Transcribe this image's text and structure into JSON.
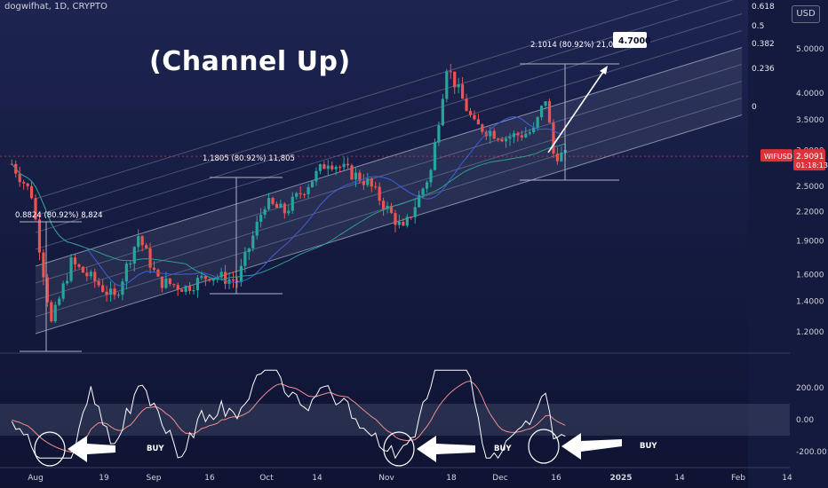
{
  "title": "dogwifhat, 1D, CRYPTO",
  "currency_button": "USD",
  "headline": "(Channel Up)",
  "price_label": {
    "symbol": "WIFUSD",
    "price": "2.9091",
    "countdown": "01:18:13"
  },
  "target_label": "4.7000",
  "fib_levels": [
    "0.618",
    "0.5",
    "0.382",
    "0.236",
    "0"
  ],
  "measure_labels": [
    {
      "text": "0.8824 (80.92%) 8,824"
    },
    {
      "text": "1.1805 (80.92%) 11,805"
    },
    {
      "text": "2.1014 (80.92%) 21,014"
    }
  ],
  "buy_labels": [
    "BUY",
    "BUY",
    "BUY"
  ],
  "colors": {
    "up": "#26a69a",
    "down": "#ef5350",
    "ma_blue": "#3f5fd8",
    "ma_green": "#2e9d8c",
    "osc": "#ffffff",
    "signal": "#ef8f8f",
    "price_tag": "#e0313a"
  },
  "chart_data": [
    {
      "type": "candlestick",
      "title": "dogwifhat, 1D, CRYPTO",
      "y_scale": "log",
      "y_ticks": [
        5.0,
        4.0,
        3.5,
        3.0,
        2.5,
        2.2,
        1.9,
        1.6,
        1.4,
        1.2
      ],
      "y_tick_labels": [
        "5.0000",
        "4.0000",
        "3.5000",
        "3.0000",
        "2.5000",
        "2.2000",
        "1.9000",
        "1.6000",
        "1.4000",
        "1.2000"
      ],
      "x_tick_labels": [
        "Aug",
        "19",
        "Sep",
        "16",
        "Oct",
        "14",
        "Nov",
        "18",
        "Dec",
        "16",
        "2025",
        "14",
        "Feb",
        "14"
      ],
      "series_keypoints": [
        {
          "date": "2024-07-26",
          "close": 2.8
        },
        {
          "date": "2024-07-31",
          "close": 2.4
        },
        {
          "date": "2024-08-05",
          "close": 1.25
        },
        {
          "date": "2024-08-10",
          "close": 1.7
        },
        {
          "date": "2024-08-16",
          "close": 1.55
        },
        {
          "date": "2024-08-21",
          "close": 1.42
        },
        {
          "date": "2024-08-27",
          "close": 1.95
        },
        {
          "date": "2024-09-01",
          "close": 1.55
        },
        {
          "date": "2024-09-08",
          "close": 1.5
        },
        {
          "date": "2024-09-14",
          "close": 1.6
        },
        {
          "date": "2024-09-21",
          "close": 1.55
        },
        {
          "date": "2024-09-28",
          "close": 2.3
        },
        {
          "date": "2024-10-03",
          "close": 2.2
        },
        {
          "date": "2024-10-14",
          "close": 2.85
        },
        {
          "date": "2024-10-24",
          "close": 2.55
        },
        {
          "date": "2024-11-02",
          "close": 2.0
        },
        {
          "date": "2024-11-09",
          "close": 2.7
        },
        {
          "date": "2024-11-13",
          "close": 4.6
        },
        {
          "date": "2024-11-20",
          "close": 3.4
        },
        {
          "date": "2024-11-28",
          "close": 3.2
        },
        {
          "date": "2024-12-05",
          "close": 3.3
        },
        {
          "date": "2024-12-08",
          "close": 3.9
        },
        {
          "date": "2024-12-10",
          "close": 2.95
        },
        {
          "date": "2024-12-13",
          "close": 2.91
        }
      ],
      "last_price": 2.9091,
      "target": 4.7,
      "measured_moves": [
        0.8824,
        1.1805,
        2.1014
      ]
    },
    {
      "type": "line",
      "name": "",
      "y_tick_labels": [
        "200.00",
        "0.00",
        "-200.00"
      ],
      "buy_signals": [
        "Aug",
        "Nov",
        "Dec"
      ]
    }
  ]
}
